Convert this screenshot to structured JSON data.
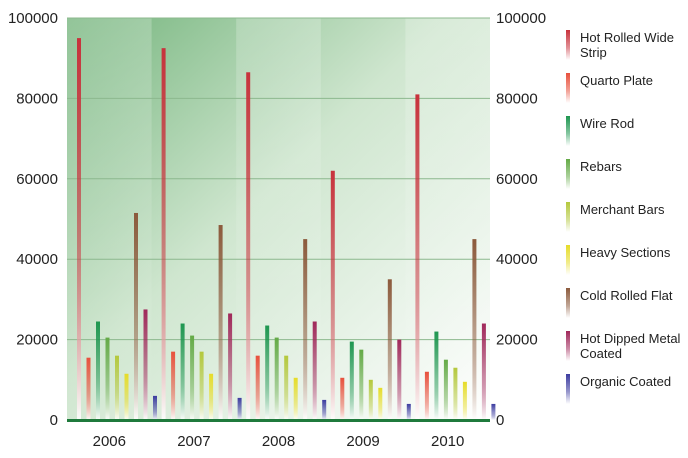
{
  "chart_data": {
    "type": "bar",
    "title": "",
    "xlabel": "",
    "ylabel": "",
    "ylim": [
      0,
      100000
    ],
    "yticks": [
      0,
      20000,
      40000,
      60000,
      80000,
      100000
    ],
    "ytick_labels": [
      "0",
      "20000",
      "40000",
      "60000",
      "80000",
      "100000"
    ],
    "grid": true,
    "legend_position": "right",
    "categories": [
      "2006",
      "2007",
      "2008",
      "2009",
      "2010"
    ],
    "series": [
      {
        "name": "Hot Rolled Wide Strip",
        "color": "#c8323c",
        "values": [
          95000,
          92500,
          86500,
          62000,
          81000
        ]
      },
      {
        "name": "Quarto Plate",
        "color": "#e8503c",
        "values": [
          15500,
          17000,
          16000,
          10500,
          12000
        ]
      },
      {
        "name": "Wire Rod",
        "color": "#1e9650",
        "values": [
          24500,
          24000,
          23500,
          19500,
          22000
        ]
      },
      {
        "name": "Rebars",
        "color": "#64aa46",
        "values": [
          20500,
          21000,
          20500,
          17500,
          15000
        ]
      },
      {
        "name": "Merchant Bars",
        "color": "#b4c83c",
        "values": [
          16000,
          17000,
          16000,
          10000,
          13000
        ]
      },
      {
        "name": "Heavy Sections",
        "color": "#e6dc28",
        "values": [
          11500,
          11500,
          10500,
          8000,
          9500
        ]
      },
      {
        "name": "Cold Rolled Flat",
        "color": "#8c5a3c",
        "values": [
          51500,
          48500,
          45000,
          35000,
          45000
        ]
      },
      {
        "name": "Hot Dipped Metal Coated",
        "color": "#a0285a",
        "values": [
          27500,
          26500,
          24500,
          20000,
          24000
        ]
      },
      {
        "name": "Organic Coated",
        "color": "#3c3ca0",
        "values": [
          6000,
          5500,
          5000,
          4000,
          4000
        ]
      }
    ]
  }
}
